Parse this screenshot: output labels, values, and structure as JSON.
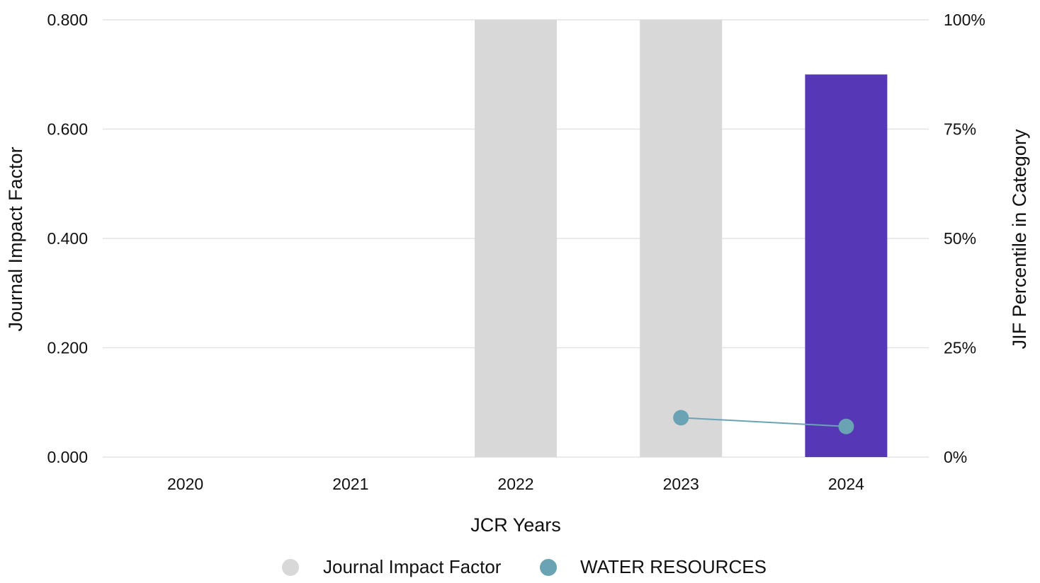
{
  "chart_data": {
    "type": "bar",
    "title": "",
    "xlabel": "JCR Years",
    "ylabel": "Journal Impact Factor",
    "y2label": "JIF Percentile in Category",
    "categories": [
      "2020",
      "2021",
      "2022",
      "2023",
      "2024"
    ],
    "ylim": [
      0,
      0.8
    ],
    "y2lim": [
      0,
      100
    ],
    "y_ticks": [
      "0.000",
      "0.200",
      "0.400",
      "0.600",
      "0.800"
    ],
    "y2_ticks": [
      "0%",
      "25%",
      "50%",
      "75%",
      "100%"
    ],
    "grid": true,
    "series": [
      {
        "name": "Journal Impact Factor",
        "kind": "bar",
        "axis": "left",
        "values": [
          null,
          null,
          0.8,
          0.8,
          0.7
        ],
        "colors": [
          "#d8d8d8",
          "#d8d8d8",
          "#d8d8d8",
          "#d8d8d8",
          "#5637b5"
        ]
      },
      {
        "name": "WATER RESOURCES",
        "kind": "line",
        "axis": "right",
        "values": [
          null,
          null,
          null,
          9,
          7
        ],
        "color": "#6aa3b4"
      }
    ],
    "legend": {
      "position": "bottom",
      "items": [
        {
          "label": "Journal Impact Factor",
          "color": "#d8d8d8"
        },
        {
          "label": "WATER RESOURCES",
          "color": "#6aa3b4"
        }
      ]
    }
  }
}
